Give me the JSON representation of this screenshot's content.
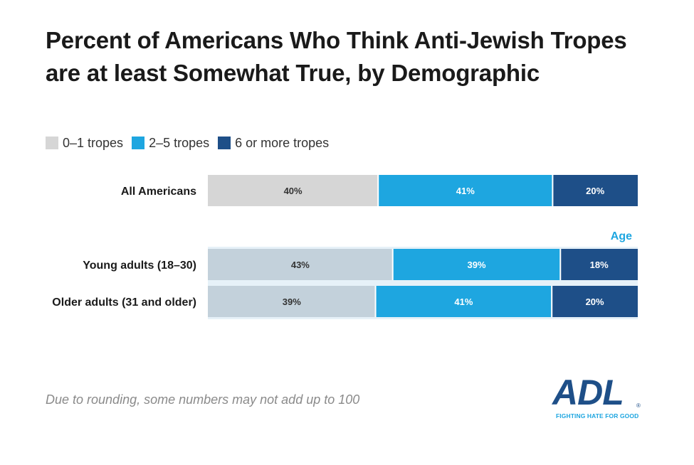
{
  "title": "Percent of Americans Who Think Anti-Jewish Tropes are at least Somewhat True, by Demographic",
  "legend": [
    {
      "label": "0–1 tropes",
      "color": "#d6d6d6"
    },
    {
      "label": "2–5 tropes",
      "color": "#1ea6e0"
    },
    {
      "label": "6 or more tropes",
      "color": "#1e4f88"
    }
  ],
  "footnote": "Due to rounding, some numbers may not add up to 100",
  "logo": {
    "word": "ADL",
    "tagline": "FIGHTING HATE FOR GOOD",
    "mark": "®"
  },
  "chart_data": {
    "type": "bar",
    "orientation": "horizontal",
    "stacked": true,
    "series_names": [
      "0–1 tropes",
      "2–5 tropes",
      "6 or more tropes"
    ],
    "series_colors": [
      "#d6d6d6",
      "#1ea6e0",
      "#1e4f88"
    ],
    "group_header": "Age",
    "rows": [
      {
        "category": "All Americans",
        "values": [
          40,
          41,
          20
        ],
        "labels": [
          "40%",
          "41%",
          "20%"
        ],
        "group": "",
        "first_color": "#d6d6d6"
      },
      {
        "category": "Young adults (18–30)",
        "values": [
          43,
          39,
          18
        ],
        "labels": [
          "43%",
          "39%",
          "18%"
        ],
        "group": "Age",
        "first_color": "#c3d1db"
      },
      {
        "category": "Older adults (31 and older)",
        "values": [
          39,
          41,
          20
        ],
        "labels": [
          "39%",
          "41%",
          "20%"
        ],
        "group": "Age",
        "first_color": "#c3d1db"
      }
    ]
  }
}
